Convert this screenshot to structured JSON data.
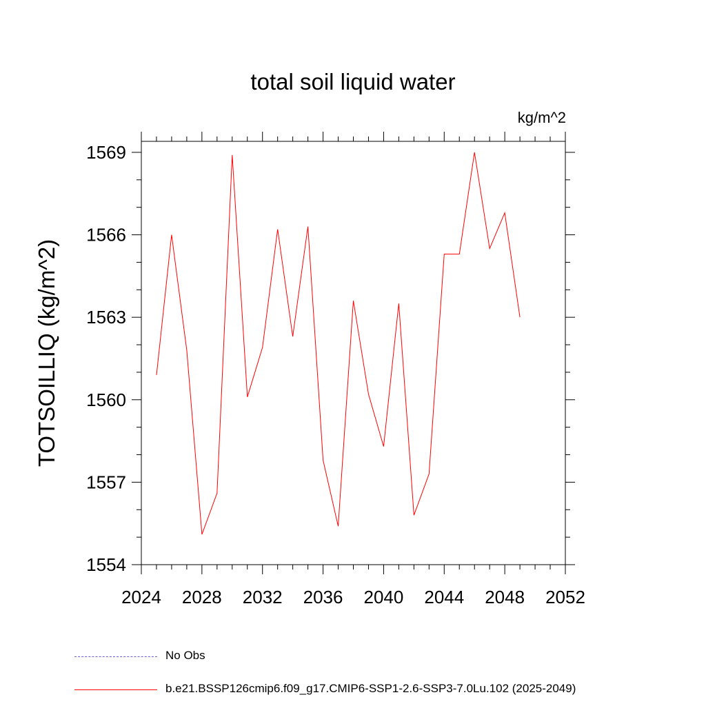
{
  "chart_data": {
    "type": "line",
    "title": "total soil liquid water",
    "units": "kg/m^2",
    "ylabel": "TOTSOILLIQ  (kg/m^2)",
    "xlabel": "",
    "xlim": [
      2024,
      2052
    ],
    "ylim": [
      1554,
      1569.4
    ],
    "xticks": [
      2024,
      2028,
      2032,
      2036,
      2040,
      2044,
      2048,
      2052
    ],
    "yticks": [
      1554,
      1557,
      1560,
      1563,
      1566,
      1569
    ],
    "grid": false,
    "series": [
      {
        "name": "b.e21.BSSP126cmip6.f09_g17.CMIP6-SSP1-2.6-SSP3-7.0Lu.102 (2025-2049)",
        "color": "#ff0000",
        "style": "solid",
        "x": [
          2025,
          2026,
          2027,
          2028,
          2029,
          2030,
          2031,
          2032,
          2033,
          2034,
          2035,
          2036,
          2037,
          2038,
          2039,
          2040,
          2041,
          2042,
          2043,
          2044,
          2045,
          2046,
          2047,
          2048,
          2049
        ],
        "values": [
          1560.9,
          1566.0,
          1561.8,
          1555.1,
          1556.6,
          1568.9,
          1560.1,
          1561.9,
          1566.2,
          1562.3,
          1566.3,
          1557.8,
          1555.4,
          1563.6,
          1560.2,
          1558.3,
          1563.5,
          1555.8,
          1557.3,
          1565.3,
          1565.3,
          1569.0,
          1565.5,
          1566.8,
          1563.0
        ]
      }
    ],
    "legend": {
      "placement": "bottom",
      "entries": [
        {
          "label": "No Obs",
          "color": "#6a5acd",
          "style": "dashed"
        },
        {
          "label": "b.e21.BSSP126cmip6.f09_g17.CMIP6-SSP1-2.6-SSP3-7.0Lu.102 (2025-2049)",
          "color": "#ff0000",
          "style": "solid"
        }
      ]
    }
  }
}
